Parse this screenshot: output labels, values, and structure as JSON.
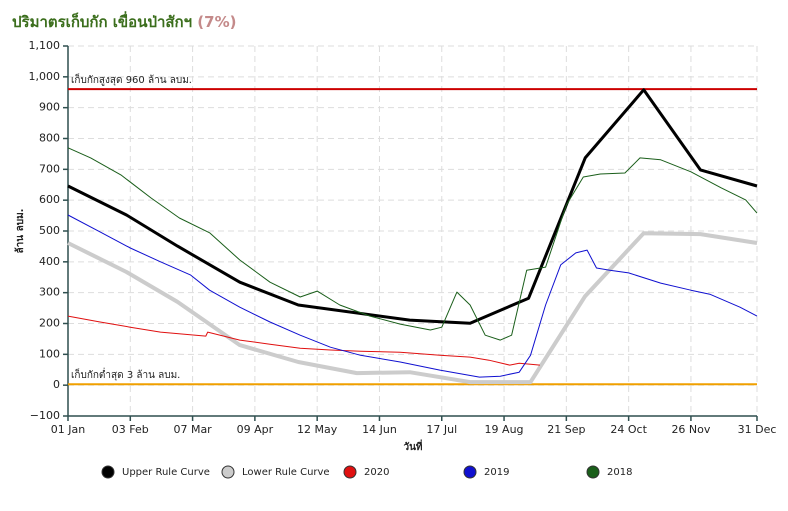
{
  "chart_data": {
    "type": "line",
    "title": "ปริมาตรเก็บกัก เขื่อนป่าสักฯ",
    "title_note": "(7%)",
    "title_color": "#3b6e1c",
    "title_note_color": "#c48a8a",
    "x_label": "วันที่",
    "y_label": "ล้าน ลบม.",
    "xlim": [
      1,
      366
    ],
    "xticks": [
      {
        "value": 1,
        "label": "01 Jan"
      },
      {
        "value": 34,
        "label": "03 Feb"
      },
      {
        "value": 67,
        "label": "07 Mar"
      },
      {
        "value": 100,
        "label": "09 Apr"
      },
      {
        "value": 133,
        "label": "12 May"
      },
      {
        "value": 166,
        "label": "14 Jun"
      },
      {
        "value": 199,
        "label": "17 Jul"
      },
      {
        "value": 232,
        "label": "19 Aug"
      },
      {
        "value": 265,
        "label": "21 Sep"
      },
      {
        "value": 298,
        "label": "24 Oct"
      },
      {
        "value": 331,
        "label": "26 Nov"
      },
      {
        "value": 366,
        "label": "31 Dec"
      }
    ],
    "ylim": [
      -100,
      1100
    ],
    "yticks": [
      {
        "value": -100,
        "label": "−100"
      },
      0,
      100,
      200,
      300,
      400,
      500,
      600,
      700,
      800,
      900,
      {
        "value": 1000,
        "label": "1,000"
      },
      {
        "value": 1100,
        "label": "1,100"
      }
    ],
    "grid": true,
    "legend": "bottom",
    "reference_lines": [
      {
        "value": 960,
        "label": "เก็บกักสูงสุด 960 ล้าน ลบม.",
        "color": "#cc0000"
      },
      {
        "value": 3,
        "label": "เก็บกักต่ำสุด 3 ล้าน ลบม.",
        "color": "#f0a000"
      }
    ],
    "series": [
      {
        "name": "Upper Rule Curve",
        "color": "#000000",
        "line_width": 3,
        "x": [
          1,
          32,
          59,
          92,
          123,
          182,
          214,
          245,
          275,
          306,
          336,
          366
        ],
        "values": [
          646,
          552,
          451,
          334,
          260,
          211,
          201,
          282,
          737,
          958,
          698,
          646
        ]
      },
      {
        "name": "Lower Rule Curve",
        "color": "#cccccc",
        "line_width": 4,
        "x": [
          1,
          32,
          59,
          92,
          123,
          154,
          182,
          214,
          246,
          275,
          306,
          336,
          366
        ],
        "values": [
          461,
          367,
          270,
          130,
          75,
          39,
          42,
          10,
          10,
          289,
          493,
          490,
          461
        ]
      },
      {
        "name": "2020",
        "color": "#e01010",
        "line_width": 1,
        "x": [
          1,
          18,
          34,
          50,
          74,
          75,
          92,
          108,
          124,
          140,
          156,
          177,
          198,
          214,
          224,
          235,
          240,
          246,
          251
        ],
        "values": [
          224,
          205,
          188,
          172,
          159,
          172,
          146,
          133,
          120,
          114,
          110,
          107,
          97,
          91,
          81,
          65,
          71,
          68,
          65
        ]
      },
      {
        "name": "2019",
        "color": "#1010d0",
        "line_width": 1,
        "x": [
          1,
          18,
          34,
          50,
          66,
          76,
          92,
          108,
          124,
          140,
          156,
          177,
          198,
          219,
          230,
          240,
          246,
          254,
          262,
          270,
          276,
          281,
          288,
          298,
          315,
          331,
          341,
          357,
          366
        ],
        "values": [
          552,
          497,
          445,
          400,
          357,
          308,
          253,
          205,
          162,
          123,
          97,
          75,
          49,
          26,
          29,
          42,
          97,
          260,
          390,
          429,
          438,
          380,
          373,
          364,
          331,
          308,
          295,
          253,
          224
        ]
      },
      {
        "name": "2018",
        "color": "#1a5e1a",
        "line_width": 1,
        "x": [
          1,
          13,
          29,
          45,
          60,
          76,
          92,
          108,
          124,
          133,
          145,
          161,
          177,
          193,
          199,
          207,
          214,
          222,
          230,
          236,
          244,
          254,
          265,
          274,
          283,
          296,
          304,
          315,
          331,
          347,
          360,
          366
        ],
        "values": [
          770,
          737,
          682,
          607,
          542,
          494,
          406,
          334,
          286,
          305,
          260,
          224,
          198,
          179,
          188,
          302,
          260,
          162,
          146,
          162,
          373,
          383,
          584,
          675,
          685,
          688,
          737,
          731,
          692,
          640,
          601,
          558
        ]
      }
    ]
  }
}
